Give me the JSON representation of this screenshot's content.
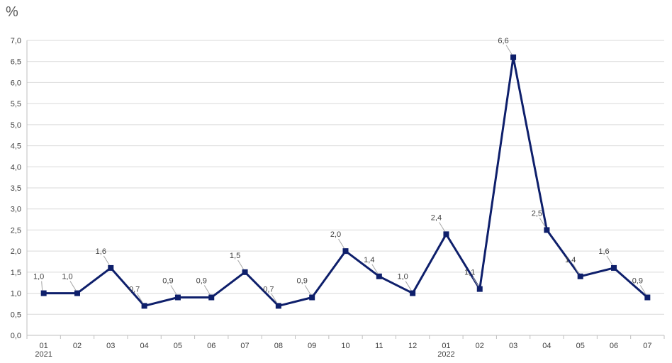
{
  "chart_data": {
    "type": "line",
    "ylabel": "%",
    "ylim": [
      0,
      7
    ],
    "ystep": 0.5,
    "y_tick_labels": [
      "0,0",
      "0,5",
      "1,0",
      "1,5",
      "2,0",
      "2,5",
      "3,0",
      "3,5",
      "4,0",
      "4,5",
      "5,0",
      "5,5",
      "6,0",
      "6,5",
      "7,0"
    ],
    "categories": [
      "01",
      "02",
      "03",
      "04",
      "05",
      "06",
      "07",
      "08",
      "09",
      "10",
      "11",
      "12",
      "01",
      "02",
      "03",
      "04",
      "05",
      "06",
      "07"
    ],
    "year_labels": [
      {
        "index": 0,
        "label": "2021"
      },
      {
        "index": 12,
        "label": "2022"
      }
    ],
    "series": [
      {
        "values": [
          1.0,
          1.0,
          1.6,
          0.7,
          0.9,
          0.9,
          1.5,
          0.7,
          0.9,
          2.0,
          1.4,
          1.0,
          2.4,
          1.1,
          6.6,
          2.5,
          1.4,
          1.6,
          0.9
        ],
        "labels": [
          "1,0",
          "1,0",
          "1,6",
          "0,7",
          "0,9",
          "0,9",
          "1,5",
          "0,7",
          "0,9",
          "2,0",
          "1,4",
          "1,0",
          "2,4",
          "1,1",
          "6,6",
          "2,5",
          "1,4",
          "1,6",
          "0,9"
        ],
        "color": "#0e1f6b"
      }
    ],
    "grid": true,
    "legend": "none"
  }
}
